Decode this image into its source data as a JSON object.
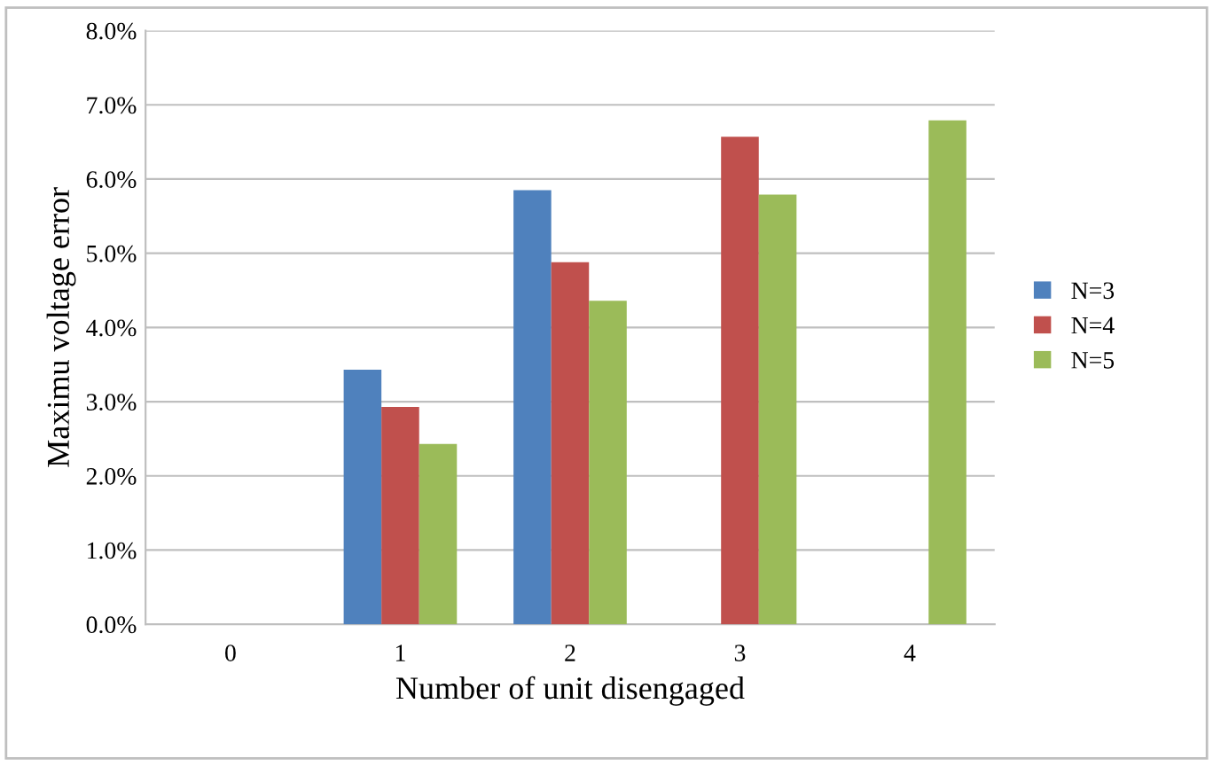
{
  "chart_data": {
    "type": "bar",
    "xlabel": "Number of unit disengaged",
    "ylabel": "Maximu voltage error",
    "categories": [
      "0",
      "1",
      "2",
      "3",
      "4"
    ],
    "series": [
      {
        "name": "N=3",
        "color": "#4f81bd",
        "values": [
          0,
          3.43,
          5.85,
          null,
          null
        ]
      },
      {
        "name": "N=4",
        "color": "#c0504d",
        "values": [
          0,
          2.93,
          4.88,
          6.57,
          null
        ]
      },
      {
        "name": "N=5",
        "color": "#9bbb59",
        "values": [
          0,
          2.43,
          4.36,
          5.79,
          6.79
        ]
      }
    ],
    "ylim": [
      0,
      8
    ],
    "yticks": [
      {
        "value": 0,
        "label": "0.0%"
      },
      {
        "value": 1,
        "label": "1.0%"
      },
      {
        "value": 2,
        "label": "2.0%"
      },
      {
        "value": 3,
        "label": "3.0%"
      },
      {
        "value": 4,
        "label": "4.0%"
      },
      {
        "value": 5,
        "label": "5.0%"
      },
      {
        "value": 6,
        "label": "6.0%"
      },
      {
        "value": 7,
        "label": "7.0%"
      },
      {
        "value": 8,
        "label": "8.0%"
      }
    ],
    "grid": "y",
    "legend": "right"
  }
}
